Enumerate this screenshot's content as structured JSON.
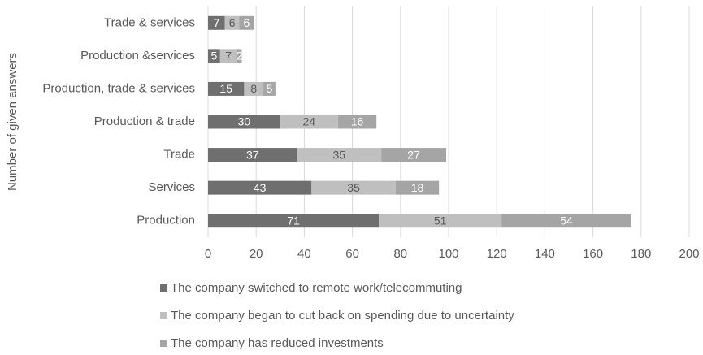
{
  "chart_data": {
    "type": "stacked_bar_horizontal",
    "y_axis_label": "Number of given answers",
    "categories": [
      "Trade & services",
      "Production &services",
      "Production, trade & services",
      "Production & trade",
      "Trade",
      "Services",
      "Production"
    ],
    "series": [
      {
        "name": "The company switched to remote work/telecommuting",
        "color": "#6f6f6f",
        "values": [
          7,
          5,
          15,
          30,
          37,
          43,
          71
        ]
      },
      {
        "name": "The company began to cut back on spending due to uncertainty",
        "color": "#bfbfbf",
        "values": [
          6,
          7,
          8,
          24,
          35,
          35,
          51
        ]
      },
      {
        "name": "The company has reduced investments",
        "color": "#a5a5a5",
        "values": [
          6,
          2,
          5,
          16,
          27,
          18,
          54
        ]
      }
    ],
    "xlim": [
      0,
      200
    ],
    "xticks": [
      0,
      20,
      40,
      60,
      80,
      100,
      120,
      140,
      160,
      180,
      200
    ],
    "grid": true
  }
}
